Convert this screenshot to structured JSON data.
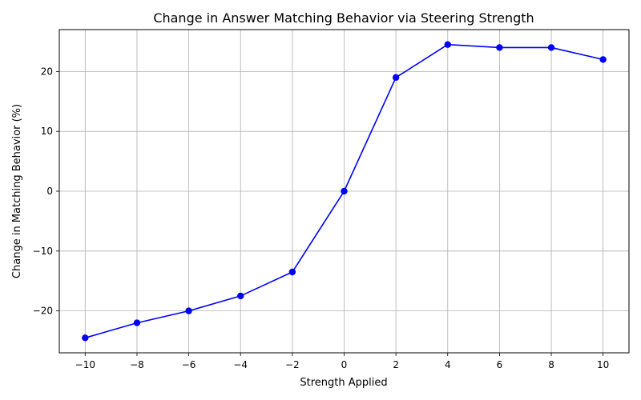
{
  "chart_data": {
    "type": "line",
    "title": "Change in Answer Matching Behavior via Steering Strength",
    "xlabel": "Strength Applied",
    "ylabel": "Change in Matching Behavior (%)",
    "x": [
      -10,
      -8,
      -6,
      -4,
      -2,
      0,
      2,
      4,
      6,
      8,
      10
    ],
    "series": [
      {
        "values": [
          -24.5,
          -22,
          -20,
          -17.5,
          -13.5,
          0,
          19,
          24.5,
          24,
          24,
          22
        ],
        "color": "#0000ff",
        "marker": "circle"
      }
    ],
    "xlim": [
      -11,
      11
    ],
    "ylim": [
      -27,
      27
    ],
    "xticks": [
      -10,
      -8,
      -6,
      -4,
      -2,
      0,
      2,
      4,
      6,
      8,
      10
    ],
    "xtick_labels": [
      "−10",
      "−8",
      "−6",
      "−4",
      "−2",
      "0",
      "2",
      "4",
      "6",
      "8",
      "10"
    ],
    "yticks": [
      -20,
      -10,
      0,
      10,
      20
    ],
    "ytick_labels": [
      "−20",
      "−10",
      "0",
      "10",
      "20"
    ],
    "grid": true,
    "legend": "none"
  }
}
